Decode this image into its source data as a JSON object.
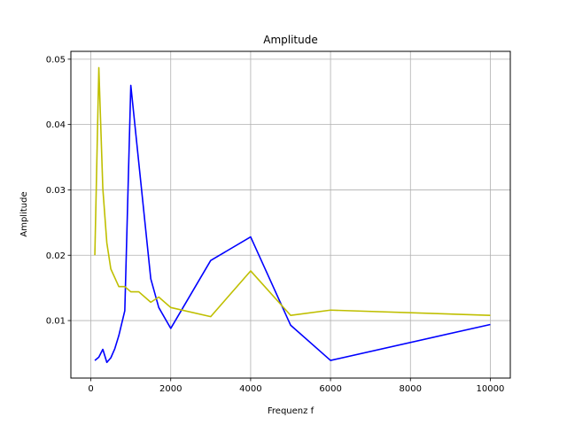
{
  "chart_data": {
    "type": "line",
    "title": "Amplitude",
    "xlabel": "Frequenz f",
    "ylabel": "Amplitude",
    "xlim": [
      -500,
      10500
    ],
    "ylim": [
      0.0012,
      0.0512
    ],
    "xticks": [
      0,
      2000,
      4000,
      6000,
      8000,
      10000
    ],
    "yticks": [
      0.01,
      0.02,
      0.03,
      0.04,
      0.05
    ],
    "xtick_labels": [
      "0",
      "2000",
      "4000",
      "6000",
      "8000",
      "10000"
    ],
    "ytick_labels": [
      "0.01",
      "0.02",
      "0.03",
      "0.04",
      "0.05"
    ],
    "grid": true,
    "series": [
      {
        "color": "#0000ff",
        "x": [
          100,
          200,
          300,
          400,
          500,
          600,
          700,
          850,
          1000,
          1500,
          1700,
          2000,
          3000,
          4000,
          5000,
          6000,
          10000
        ],
        "y": [
          0.0039,
          0.0044,
          0.0056,
          0.0036,
          0.0043,
          0.0057,
          0.0077,
          0.0115,
          0.046,
          0.0164,
          0.012,
          0.0088,
          0.0192,
          0.0228,
          0.0093,
          0.0039,
          0.0094
        ]
      },
      {
        "color": "#bfbf00",
        "x": [
          100,
          200,
          300,
          400,
          500,
          700,
          850,
          1000,
          1200,
          1500,
          1700,
          2000,
          3000,
          4000,
          5000,
          6000,
          10000
        ],
        "y": [
          0.02,
          0.0487,
          0.0302,
          0.0219,
          0.0179,
          0.0152,
          0.0152,
          0.0144,
          0.0144,
          0.0128,
          0.0136,
          0.012,
          0.0106,
          0.0176,
          0.0108,
          0.0116,
          0.0108
        ]
      }
    ]
  }
}
